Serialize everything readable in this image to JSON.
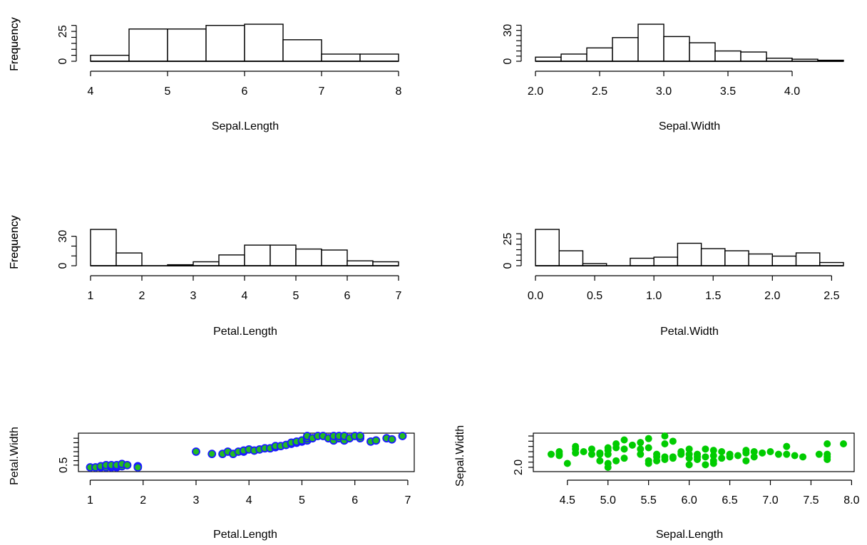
{
  "chart_data": [
    {
      "type": "histogram",
      "title": "",
      "xlabel": "Sepal.Length",
      "ylabel": "Frequency",
      "bins": [
        [
          4.0,
          4.5,
          5
        ],
        [
          4.5,
          5.0,
          27
        ],
        [
          5.0,
          5.5,
          27
        ],
        [
          5.5,
          6.0,
          30
        ],
        [
          6.0,
          6.5,
          31
        ],
        [
          6.5,
          7.0,
          18
        ],
        [
          7.0,
          7.5,
          6
        ],
        [
          7.5,
          8.0,
          6
        ]
      ],
      "xticks": [
        "4",
        "5",
        "6",
        "7",
        "8"
      ],
      "yticks_labeled": [
        "0",
        "25"
      ],
      "xlim": [
        4.0,
        8.0
      ],
      "ylim": [
        0,
        31
      ]
    },
    {
      "type": "histogram",
      "title": "",
      "xlabel": "Sepal.Width",
      "ylabel": "Frequency",
      "bins": [
        [
          2.0,
          2.2,
          4
        ],
        [
          2.2,
          2.4,
          7
        ],
        [
          2.4,
          2.6,
          13
        ],
        [
          2.6,
          2.8,
          23
        ],
        [
          2.8,
          3.0,
          36
        ],
        [
          3.0,
          3.2,
          24
        ],
        [
          3.2,
          3.4,
          18
        ],
        [
          3.4,
          3.6,
          10
        ],
        [
          3.6,
          3.8,
          9
        ],
        [
          3.8,
          4.0,
          3
        ],
        [
          4.0,
          4.2,
          2
        ],
        [
          4.2,
          4.4,
          1
        ]
      ],
      "xticks": [
        "2.0",
        "2.5",
        "3.0",
        "3.5",
        "4.0"
      ],
      "yticks_labeled": [
        "0",
        "30"
      ],
      "xlim": [
        2.0,
        4.4
      ],
      "ylim": [
        0,
        36
      ]
    },
    {
      "type": "histogram",
      "title": "",
      "xlabel": "Petal.Length",
      "ylabel": "Frequency",
      "bins": [
        [
          1.0,
          1.5,
          37
        ],
        [
          1.5,
          2.0,
          13
        ],
        [
          2.0,
          2.5,
          0
        ],
        [
          2.5,
          3.0,
          1
        ],
        [
          3.0,
          3.5,
          4
        ],
        [
          3.5,
          4.0,
          11
        ],
        [
          4.0,
          4.5,
          21
        ],
        [
          4.5,
          5.0,
          21
        ],
        [
          5.0,
          5.5,
          17
        ],
        [
          5.5,
          6.0,
          16
        ],
        [
          6.0,
          6.5,
          5
        ],
        [
          6.5,
          7.0,
          4
        ]
      ],
      "xticks": [
        "1",
        "2",
        "3",
        "4",
        "5",
        "6",
        "7"
      ],
      "yticks_labeled": [
        "0",
        "30"
      ],
      "xlim": [
        1.0,
        7.0
      ],
      "ylim": [
        0,
        37
      ]
    },
    {
      "type": "histogram",
      "title": "",
      "xlabel": "Petal.Width",
      "ylabel": "Frequency",
      "bins": [
        [
          0.0,
          0.2,
          34
        ],
        [
          0.2,
          0.4,
          14
        ],
        [
          0.4,
          0.6,
          2
        ],
        [
          0.6,
          0.8,
          0
        ],
        [
          0.8,
          1.0,
          7
        ],
        [
          1.0,
          1.2,
          8
        ],
        [
          1.2,
          1.4,
          21
        ],
        [
          1.4,
          1.6,
          16
        ],
        [
          1.6,
          1.8,
          14
        ],
        [
          1.8,
          2.0,
          11
        ],
        [
          2.0,
          2.2,
          9
        ],
        [
          2.2,
          2.4,
          12
        ],
        [
          2.4,
          2.6,
          3
        ]
      ],
      "xticks": [
        "0.0",
        "0.5",
        "1.0",
        "1.5",
        "2.0",
        "2.5"
      ],
      "yticks_labeled": [
        "0",
        "25"
      ],
      "xlim": [
        0.0,
        2.6
      ],
      "ylim": [
        0,
        34
      ]
    },
    {
      "type": "scatter",
      "title": "",
      "xlabel": "Petal.Length",
      "ylabel": "Petal.Width",
      "xticks": [
        "1",
        "2",
        "3",
        "4",
        "5",
        "6",
        "7"
      ],
      "yticks_labeled": [
        "0.5"
      ],
      "xlim": [
        0.98,
        6.92
      ],
      "ylim": [
        0.4,
        1.8
      ],
      "point_fill": "#22bb22",
      "point_stroke": "#1a1aff",
      "points": [
        [
          1.0,
          0.4
        ],
        [
          1.1,
          0.4
        ],
        [
          1.2,
          0.4
        ],
        [
          1.2,
          0.45
        ],
        [
          1.3,
          0.4
        ],
        [
          1.3,
          0.5
        ],
        [
          1.4,
          0.4
        ],
        [
          1.4,
          0.45
        ],
        [
          1.4,
          0.5
        ],
        [
          1.5,
          0.4
        ],
        [
          1.5,
          0.45
        ],
        [
          1.5,
          0.5
        ],
        [
          1.6,
          0.45
        ],
        [
          1.6,
          0.55
        ],
        [
          1.7,
          0.5
        ],
        [
          1.9,
          0.45
        ],
        [
          1.9,
          0.4
        ],
        [
          3.0,
          1.1
        ],
        [
          3.3,
          1.0
        ],
        [
          3.5,
          1.0
        ],
        [
          3.6,
          1.1
        ],
        [
          3.7,
          1.0
        ],
        [
          3.8,
          1.1
        ],
        [
          3.9,
          1.1
        ],
        [
          3.9,
          1.15
        ],
        [
          4.0,
          1.2
        ],
        [
          4.1,
          1.15
        ],
        [
          4.2,
          1.2
        ],
        [
          4.3,
          1.25
        ],
        [
          4.4,
          1.25
        ],
        [
          4.5,
          1.3
        ],
        [
          4.5,
          1.35
        ],
        [
          4.6,
          1.35
        ],
        [
          4.7,
          1.4
        ],
        [
          4.8,
          1.45
        ],
        [
          4.8,
          1.5
        ],
        [
          4.9,
          1.5
        ],
        [
          4.9,
          1.55
        ],
        [
          5.0,
          1.55
        ],
        [
          5.0,
          1.6
        ],
        [
          5.1,
          1.6
        ],
        [
          5.1,
          1.7
        ],
        [
          5.1,
          1.8
        ],
        [
          5.2,
          1.7
        ],
        [
          5.3,
          1.8
        ],
        [
          5.4,
          1.8
        ],
        [
          5.5,
          1.7
        ],
        [
          5.6,
          1.6
        ],
        [
          5.6,
          1.8
        ],
        [
          5.7,
          1.7
        ],
        [
          5.7,
          1.8
        ],
        [
          5.8,
          1.6
        ],
        [
          5.8,
          1.8
        ],
        [
          5.9,
          1.7
        ],
        [
          6.0,
          1.8
        ],
        [
          6.1,
          1.7
        ],
        [
          6.1,
          1.8
        ],
        [
          6.3,
          1.55
        ],
        [
          6.4,
          1.6
        ],
        [
          6.6,
          1.7
        ],
        [
          6.7,
          1.65
        ],
        [
          6.9,
          1.8
        ]
      ]
    },
    {
      "type": "scatter",
      "title": "",
      "xlabel": "Sepal.Length",
      "ylabel": "Sepal.Width",
      "xticks": [
        "4.5",
        "5.0",
        "5.5",
        "6.0",
        "6.5",
        "7.0",
        "7.5",
        "8.0"
      ],
      "yticks_labeled": [
        "2.0"
      ],
      "xlim": [
        4.3,
        7.9
      ],
      "ylim": [
        2.0,
        4.4
      ],
      "point_fill": "#00cc00",
      "points": [
        [
          4.3,
          3.0
        ],
        [
          4.4,
          2.9
        ],
        [
          4.4,
          3.0
        ],
        [
          4.4,
          3.2
        ],
        [
          4.5,
          2.3
        ],
        [
          4.6,
          3.1
        ],
        [
          4.6,
          3.4
        ],
        [
          4.6,
          3.6
        ],
        [
          4.7,
          3.2
        ],
        [
          4.8,
          3.0
        ],
        [
          4.8,
          3.4
        ],
        [
          4.9,
          2.5
        ],
        [
          4.9,
          3.0
        ],
        [
          4.9,
          3.1
        ],
        [
          5.0,
          2.0
        ],
        [
          5.0,
          2.3
        ],
        [
          5.0,
          3.0
        ],
        [
          5.0,
          3.3
        ],
        [
          5.0,
          3.5
        ],
        [
          5.1,
          2.5
        ],
        [
          5.1,
          3.5
        ],
        [
          5.1,
          3.8
        ],
        [
          5.2,
          2.7
        ],
        [
          5.2,
          3.4
        ],
        [
          5.2,
          4.1
        ],
        [
          5.3,
          3.7
        ],
        [
          5.4,
          3.0
        ],
        [
          5.4,
          3.4
        ],
        [
          5.4,
          3.9
        ],
        [
          5.5,
          2.3
        ],
        [
          5.5,
          2.5
        ],
        [
          5.5,
          3.5
        ],
        [
          5.5,
          4.2
        ],
        [
          5.6,
          2.5
        ],
        [
          5.6,
          2.8
        ],
        [
          5.6,
          3.0
        ],
        [
          5.7,
          2.6
        ],
        [
          5.7,
          2.8
        ],
        [
          5.7,
          3.8
        ],
        [
          5.7,
          4.4
        ],
        [
          5.8,
          2.7
        ],
        [
          5.8,
          2.8
        ],
        [
          5.8,
          4.0
        ],
        [
          5.9,
          3.0
        ],
        [
          5.9,
          3.2
        ],
        [
          6.0,
          2.2
        ],
        [
          6.0,
          2.7
        ],
        [
          6.0,
          3.0
        ],
        [
          6.0,
          3.4
        ],
        [
          6.1,
          2.6
        ],
        [
          6.1,
          2.8
        ],
        [
          6.1,
          3.0
        ],
        [
          6.2,
          2.2
        ],
        [
          6.2,
          2.8
        ],
        [
          6.2,
          3.4
        ],
        [
          6.3,
          2.3
        ],
        [
          6.3,
          2.5
        ],
        [
          6.3,
          2.9
        ],
        [
          6.3,
          3.3
        ],
        [
          6.4,
          2.7
        ],
        [
          6.4,
          3.2
        ],
        [
          6.5,
          2.8
        ],
        [
          6.5,
          3.0
        ],
        [
          6.6,
          2.9
        ],
        [
          6.7,
          2.5
        ],
        [
          6.7,
          3.1
        ],
        [
          6.7,
          3.3
        ],
        [
          6.8,
          2.8
        ],
        [
          6.8,
          3.2
        ],
        [
          6.9,
          3.1
        ],
        [
          7.0,
          3.2
        ],
        [
          7.1,
          3.0
        ],
        [
          7.2,
          3.0
        ],
        [
          7.2,
          3.6
        ],
        [
          7.3,
          2.9
        ],
        [
          7.4,
          2.8
        ],
        [
          7.6,
          3.0
        ],
        [
          7.7,
          2.6
        ],
        [
          7.7,
          2.8
        ],
        [
          7.7,
          3.0
        ],
        [
          7.7,
          3.8
        ],
        [
          7.9,
          3.8
        ]
      ]
    }
  ]
}
